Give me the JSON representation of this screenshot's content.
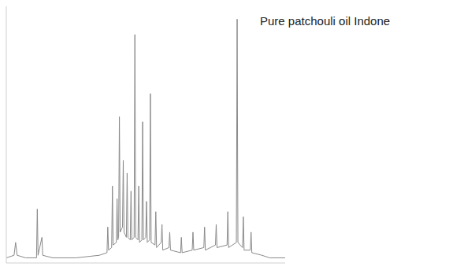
{
  "chart_data": {
    "type": "line",
    "title": "Pure patchouli oil Indone",
    "x": [
      0,
      1.0,
      1.2,
      1.4,
      2.5,
      3.9,
      4.0,
      4.1,
      4.6,
      4.7,
      6,
      9,
      12,
      13.0,
      13.1,
      13.2,
      13.6,
      13.7,
      13.8,
      14.2,
      14.3,
      14.4,
      14.5,
      14.6,
      14.7,
      15.0,
      15.1,
      15.2,
      15.5,
      15.6,
      15.7,
      16.0,
      16.1,
      16.2,
      16.5,
      16.6,
      16.7,
      17.0,
      17.1,
      17.2,
      17.5,
      17.6,
      17.7,
      18.0,
      18.1,
      18.2,
      18.5,
      18.6,
      18.7,
      19.2,
      19.3,
      19.4,
      20,
      20.1,
      20.2,
      21,
      21.1,
      21.2,
      22.5,
      22.6,
      22.7,
      24,
      24.1,
      24.2,
      25.5,
      25.6,
      25.7,
      27,
      27.1,
      27.2,
      28.5,
      28.6,
      28.7,
      29.7,
      29.8,
      29.9,
      30.5,
      30.6,
      30.7,
      31.5,
      31.6,
      31.7,
      33,
      34,
      36
    ],
    "values": [
      2,
      3,
      8,
      3,
      2,
      2,
      21,
      3,
      10,
      3,
      2,
      2,
      3,
      4,
      14,
      5,
      6,
      30,
      7,
      8,
      25,
      9,
      10,
      57,
      12,
      14,
      40,
      12,
      10,
      35,
      10,
      9,
      28,
      9,
      10,
      89,
      10,
      9,
      30,
      8,
      9,
      55,
      9,
      10,
      24,
      8,
      9,
      66,
      8,
      7,
      20,
      6,
      8,
      15,
      5,
      6,
      12,
      5,
      4,
      10,
      4,
      5,
      12,
      5,
      6,
      14,
      5,
      7,
      15,
      6,
      7,
      20,
      6,
      8,
      95,
      8,
      6,
      18,
      5,
      5,
      12,
      4,
      3,
      2,
      2
    ],
    "color": "#8a8a8a",
    "xlim": [
      0,
      36
    ],
    "ylim": [
      0,
      100
    ],
    "tick_labels": false,
    "grid": false
  }
}
